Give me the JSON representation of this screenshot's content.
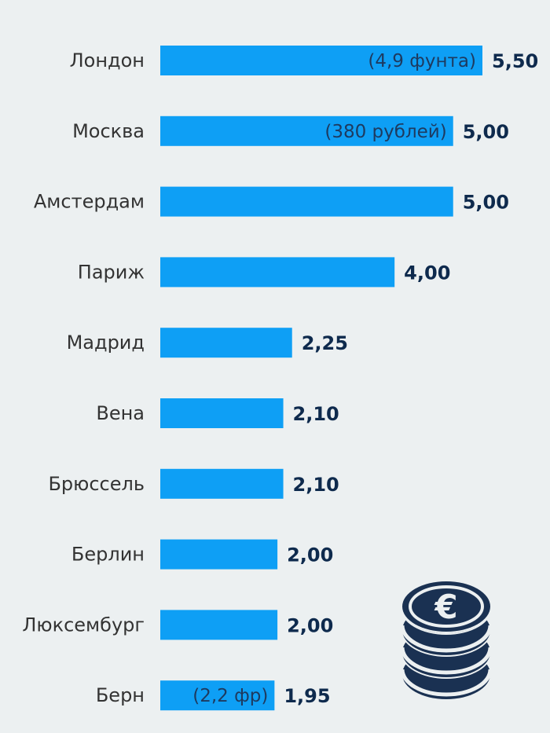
{
  "colors": {
    "bar": "#0e9ff5",
    "background": "#ecf0f1",
    "value_text": "#0e2a4d",
    "icon": "#1a3152"
  },
  "icon": "euro-coin-stack-icon",
  "chart_data": {
    "type": "bar",
    "orientation": "horizontal",
    "categories": [
      "Лондон",
      "Москва",
      "Амстердам",
      "Париж",
      "Мадрид",
      "Вена",
      "Брюссель",
      "Берлин",
      "Люксембург",
      "Берн"
    ],
    "values": [
      5.5,
      5.0,
      5.0,
      4.0,
      2.25,
      2.1,
      2.1,
      2.0,
      2.0,
      1.95
    ],
    "value_labels": [
      "5,50",
      "5,00",
      "5,00",
      "4,00",
      "2,25",
      "2,10",
      "2,10",
      "2,00",
      "2,00",
      "1,95"
    ],
    "notes": [
      "(4,9 фунта)",
      "(380 рублей)",
      "",
      "",
      "",
      "",
      "",
      "",
      "",
      "(2,2 фр)"
    ],
    "xlim": [
      0,
      5.5
    ],
    "grid": false,
    "legend": "none"
  }
}
